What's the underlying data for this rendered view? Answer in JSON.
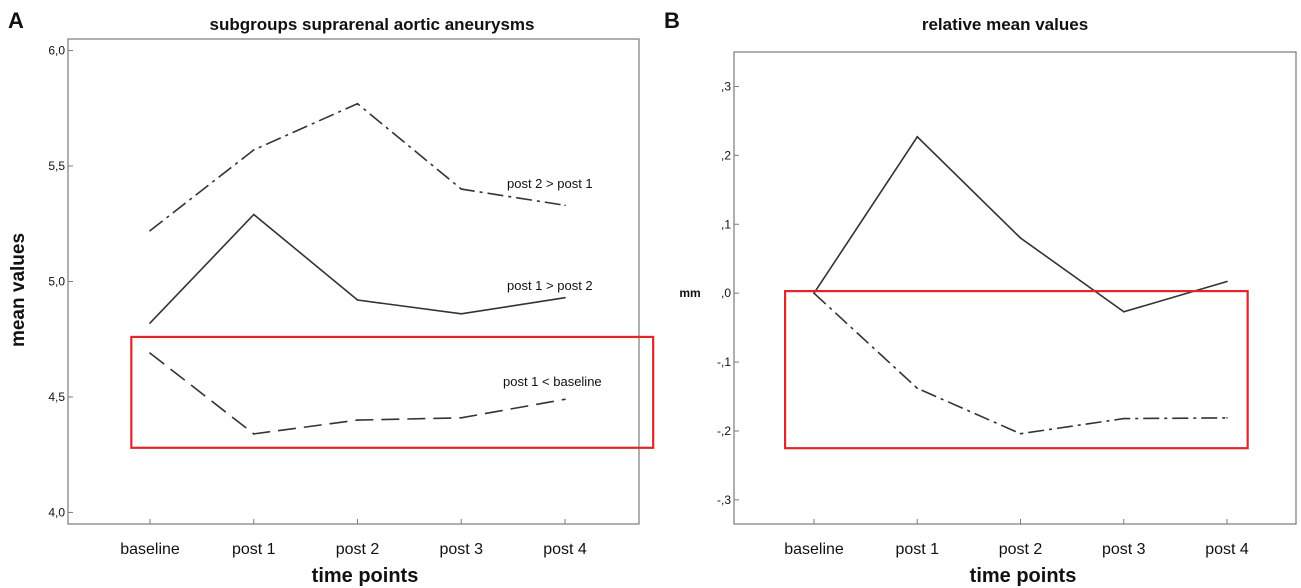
{
  "colors": {
    "line": "#333333",
    "highlight": "#e0262a",
    "frame": "#7a7a7a"
  },
  "chart_data": [
    {
      "panel": "A",
      "type": "line",
      "title": "subgroups suprarenal aortic aneurysms",
      "xlabel": "time points",
      "ylabel": "mean values",
      "categories": [
        "baseline",
        "post 1",
        "post 2",
        "post 3",
        "post 4"
      ],
      "ylim": [
        3.95,
        6.05
      ],
      "yticks": [
        4.0,
        4.5,
        5.0,
        5.5,
        6.0
      ],
      "ytick_labels": [
        "4,0",
        "4,5",
        "5,0",
        "5,5",
        "6,0"
      ],
      "grid": false,
      "series": [
        {
          "values": [
            5.22,
            5.57,
            5.77,
            5.4,
            5.33
          ],
          "style": "dashdot",
          "label": "post 2 > post 1"
        },
        {
          "values": [
            4.82,
            5.29,
            4.92,
            4.86,
            4.93
          ],
          "style": "solid",
          "label": "post 1 > post 2"
        },
        {
          "values": [
            4.69,
            4.34,
            4.4,
            4.41,
            4.49
          ],
          "style": "dashed",
          "label": "post 1 < baseline"
        }
      ],
      "highlight_box": {
        "x": [
          -0.18,
          4.85
        ],
        "y": [
          4.28,
          4.76
        ]
      }
    },
    {
      "panel": "B",
      "type": "line",
      "title": "relative mean values",
      "xlabel": "time points",
      "ylabel": "mm",
      "categories": [
        "baseline",
        "post 1",
        "post 2",
        "post 3",
        "post 4"
      ],
      "ylim": [
        -0.335,
        0.35
      ],
      "yticks": [
        -0.3,
        -0.2,
        -0.1,
        0.0,
        0.1,
        0.2,
        0.3
      ],
      "ytick_labels": [
        "-,3",
        "-,2",
        "-,1",
        ",0",
        ",1",
        ",2",
        ",3"
      ],
      "grid": false,
      "series": [
        {
          "values": [
            0.0,
            0.227,
            0.08,
            -0.027,
            0.017
          ],
          "style": "solid"
        },
        {
          "values": [
            0.0,
            -0.138,
            -0.204,
            -0.182,
            -0.181
          ],
          "style": "dashdot"
        }
      ],
      "highlight_box": {
        "x": [
          -0.28,
          4.2
        ],
        "y": [
          -0.225,
          0.003
        ]
      }
    }
  ]
}
